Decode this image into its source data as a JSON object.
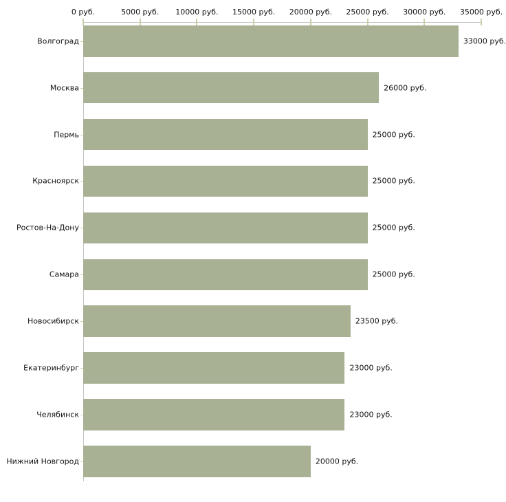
{
  "chart_data": {
    "type": "bar",
    "orientation": "horizontal",
    "title": "",
    "categories": [
      "Волгоград",
      "Москва",
      "Пермь",
      "Красноярск",
      "Ростов-На-Дону",
      "Самара",
      "Новосибирск",
      "Екатеринбург",
      "Челябинск",
      "Нижний Новгород"
    ],
    "values": [
      33000,
      26000,
      25000,
      25000,
      25000,
      25000,
      23500,
      23000,
      23000,
      20000
    ],
    "value_labels": [
      "33000 руб.",
      "26000 руб.",
      "25000 руб.",
      "25000 руб.",
      "25000 руб.",
      "25000 руб.",
      "23500 руб.",
      "23000 руб.",
      "23000 руб.",
      "20000 руб."
    ],
    "x_tick_values": [
      0,
      5000,
      10000,
      15000,
      20000,
      25000,
      30000,
      35000
    ],
    "x_tick_labels": [
      "0 руб.",
      "5000 руб.",
      "10000 руб.",
      "15000 руб.",
      "20000 руб.",
      "25000 руб.",
      "30000 руб.",
      "35000 руб."
    ],
    "xlim": [
      0,
      35000
    ],
    "unit": "руб.",
    "xlabel": "",
    "ylabel": "",
    "grid": false,
    "legend": false,
    "colors": {
      "bar": "#a9b194",
      "axis": "#bcbcbc",
      "tick": "#cdcdad",
      "text": "#111111",
      "background": "#ffffff"
    }
  }
}
